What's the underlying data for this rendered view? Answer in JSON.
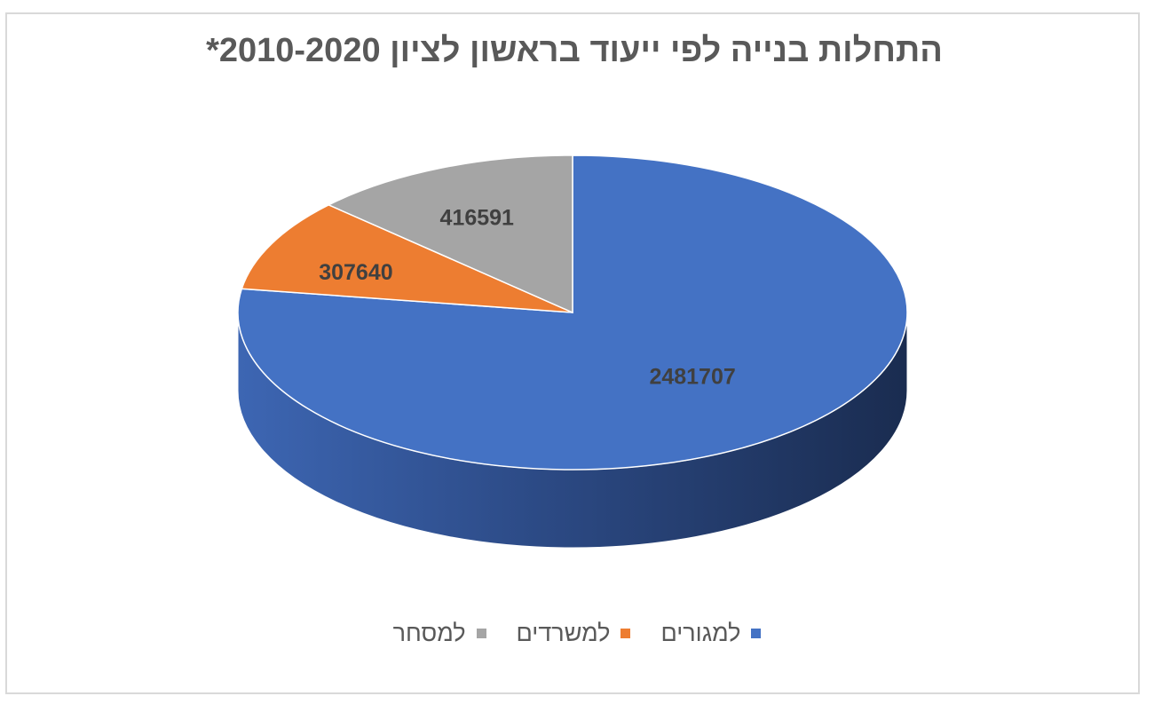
{
  "chart_data": {
    "type": "pie",
    "style": "3d",
    "title": "התחלות בנייה לפי ייעוד בראשון לציון 2010-2020*",
    "categories": [
      "למגורים",
      "למשרדים",
      "למסחר"
    ],
    "values": [
      2481707,
      307640,
      416591
    ],
    "colors": [
      "#4472c4",
      "#ed7d31",
      "#a5a5a5"
    ],
    "data_labels": [
      "2481707",
      "307640",
      "416591"
    ],
    "legend_position": "bottom"
  }
}
